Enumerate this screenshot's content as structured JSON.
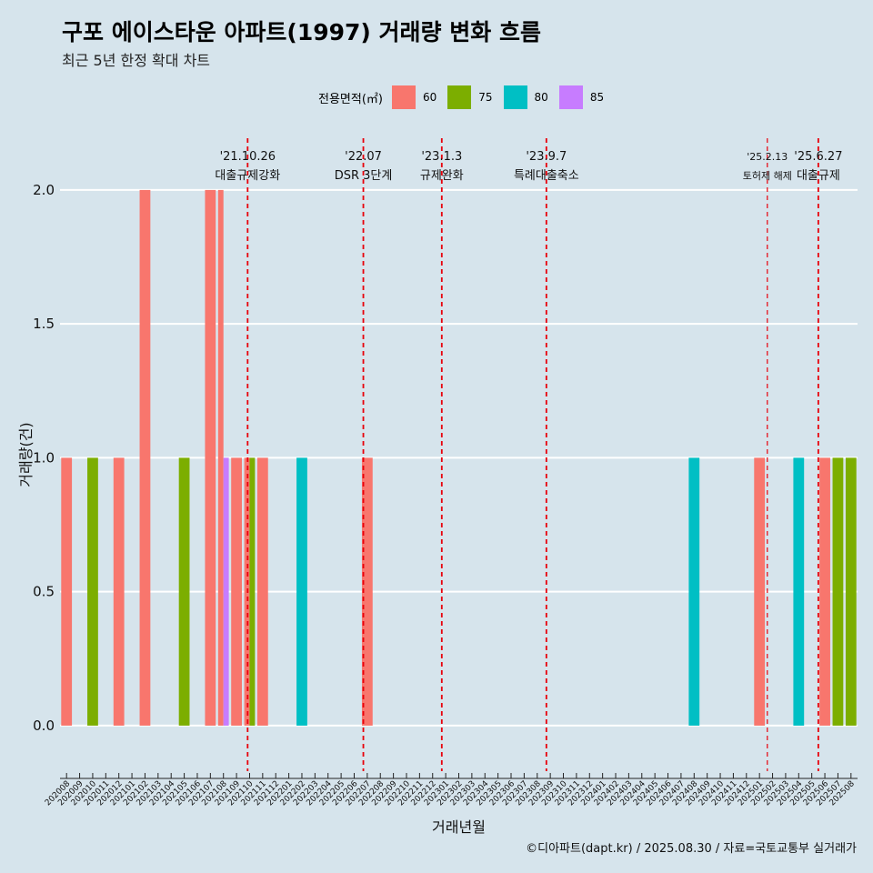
{
  "title": "구포 에이스타운 아파트(1997) 거래량 변화 흐름",
  "subtitle": "최근 5년 한정 확대 차트",
  "caption": "©디아파트(dapt.kr) / 2025.08.30 / 자료=국토교통부 실거래가",
  "colors": {
    "60": "#f8766d",
    "75": "#7cae00",
    "80": "#00bfc4",
    "85": "#c77cff",
    "vline": "#e8000b",
    "grid": "#ffffff",
    "background": "#d6e4ec"
  },
  "legend": {
    "title": "전용면적(㎡)",
    "items": [
      {
        "label": "60",
        "key": "60"
      },
      {
        "label": "75",
        "key": "75"
      },
      {
        "label": "80",
        "key": "80"
      },
      {
        "label": "85",
        "key": "85"
      }
    ]
  },
  "chart_data": {
    "type": "bar",
    "xlabel": "거래년월",
    "ylabel": "거래량(건)",
    "ylim": [
      -0.17,
      2.2
    ],
    "yticks": [
      "0.0",
      "0.5",
      "1.0",
      "1.5",
      "2.0"
    ],
    "ytick_values": [
      0,
      0.5,
      1,
      1.5,
      2
    ],
    "categories": [
      "202008",
      "202009",
      "202010",
      "202011",
      "202012",
      "202101",
      "202102",
      "202103",
      "202104",
      "202105",
      "202106",
      "202107",
      "202108",
      "202109",
      "202110",
      "202111",
      "202112",
      "202201",
      "202202",
      "202203",
      "202204",
      "202205",
      "202206",
      "202207",
      "202208",
      "202209",
      "202210",
      "202211",
      "202212",
      "202301",
      "202302",
      "202303",
      "202304",
      "202305",
      "202306",
      "202307",
      "202308",
      "202309",
      "202310",
      "202311",
      "202312",
      "202401",
      "202402",
      "202403",
      "202404",
      "202405",
      "202406",
      "202407",
      "202408",
      "202409",
      "202410",
      "202411",
      "202412",
      "202501",
      "202502",
      "202503",
      "202504",
      "202505",
      "202506",
      "202507",
      "202508"
    ],
    "bars": [
      {
        "month": "202008",
        "size": "60",
        "value": 1
      },
      {
        "month": "202010",
        "size": "75",
        "value": 1
      },
      {
        "month": "202012",
        "size": "60",
        "value": 1
      },
      {
        "month": "202102",
        "size": "60",
        "value": 2
      },
      {
        "month": "202105",
        "size": "75",
        "value": 1
      },
      {
        "month": "202107",
        "size": "60",
        "value": 2
      },
      {
        "month": "202108",
        "size": "60",
        "value": 2
      },
      {
        "month": "202108",
        "size": "85",
        "value": 1
      },
      {
        "month": "202109",
        "size": "60",
        "value": 1
      },
      {
        "month": "202110",
        "size": "60",
        "value": 1
      },
      {
        "month": "202110",
        "size": "75",
        "value": 1
      },
      {
        "month": "202111",
        "size": "60",
        "value": 1
      },
      {
        "month": "202202",
        "size": "80",
        "value": 1
      },
      {
        "month": "202207",
        "size": "60",
        "value": 1
      },
      {
        "month": "202408",
        "size": "80",
        "value": 1
      },
      {
        "month": "202501",
        "size": "60",
        "value": 1
      },
      {
        "month": "202504",
        "size": "80",
        "value": 1
      },
      {
        "month": "202506",
        "size": "60",
        "value": 1
      },
      {
        "month": "202507",
        "size": "75",
        "value": 1
      },
      {
        "month": "202508",
        "size": "75",
        "value": 1
      }
    ],
    "annotations": [
      {
        "date": "'21.10.26",
        "label": "대출규제강화",
        "month_index": 14.35,
        "small": false
      },
      {
        "date": "'22.07",
        "label": "DSR 3단계",
        "month_index": 23.2,
        "small": false
      },
      {
        "date": "'23.1.3",
        "label": "규제완화",
        "month_index": 29.2,
        "small": false
      },
      {
        "date": "'23.9.7",
        "label": "특례대출축소",
        "month_index": 37.2,
        "small": false
      },
      {
        "date": "'25.2.13",
        "label": "토허제 해제",
        "month_index": 54.1,
        "small": true
      },
      {
        "date": "'25.6.27",
        "label": "대출규제",
        "month_index": 58.0,
        "small": false
      }
    ]
  }
}
